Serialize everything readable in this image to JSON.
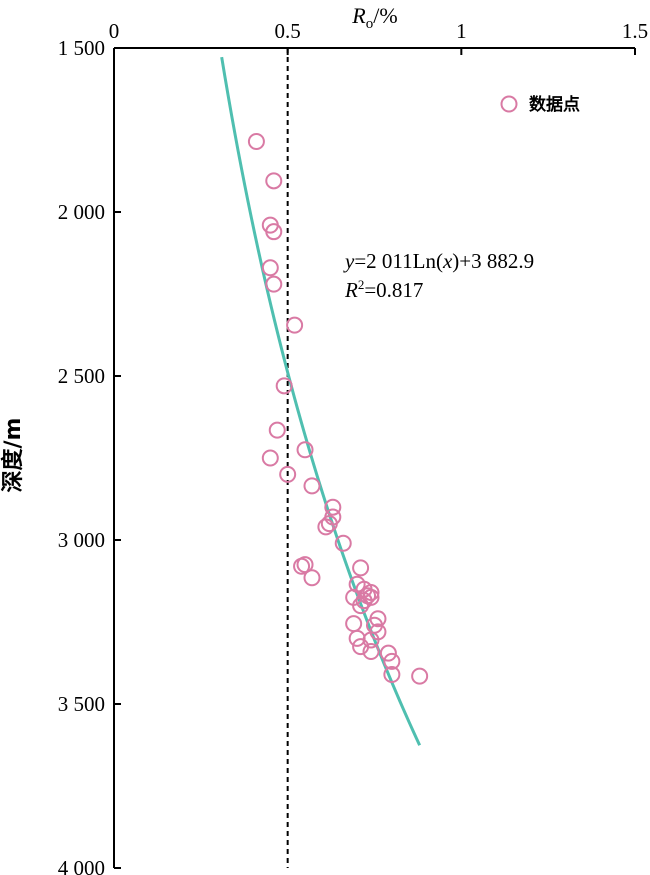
{
  "chart_data": {
    "type": "scatter",
    "xlabel_main": "R",
    "xlabel_sub": "o",
    "xlabel_unit": "/%",
    "ylabel": "深度/m",
    "xlim": [
      0,
      1.5
    ],
    "ylim": [
      1500,
      4000
    ],
    "y_inverted": true,
    "x_axis_position": "top",
    "x_ticks": [
      {
        "value": 0,
        "label": "0"
      },
      {
        "value": 0.5,
        "label": "0.5"
      },
      {
        "value": 1,
        "label": "1"
      },
      {
        "value": 1.5,
        "label": "1.5"
      }
    ],
    "y_ticks": [
      {
        "value": 1500,
        "label": "1 500"
      },
      {
        "value": 2000,
        "label": "2 000"
      },
      {
        "value": 2500,
        "label": "2 500"
      },
      {
        "value": 3000,
        "label": "3 000"
      },
      {
        "value": 3500,
        "label": "3 500"
      },
      {
        "value": 4000,
        "label": "4 000"
      }
    ],
    "grid": false,
    "legend_position": "top-right",
    "series": [
      {
        "name": "数据点",
        "color": "#d97aa4",
        "marker": "open-circle",
        "points": [
          [
            0.41,
            1785
          ],
          [
            0.46,
            1905
          ],
          [
            0.45,
            2040
          ],
          [
            0.46,
            2060
          ],
          [
            0.45,
            2170
          ],
          [
            0.46,
            2220
          ],
          [
            0.52,
            2345
          ],
          [
            0.49,
            2530
          ],
          [
            0.47,
            2665
          ],
          [
            0.55,
            2725
          ],
          [
            0.45,
            2750
          ],
          [
            0.5,
            2800
          ],
          [
            0.57,
            2835
          ],
          [
            0.63,
            2900
          ],
          [
            0.63,
            2930
          ],
          [
            0.62,
            2950
          ],
          [
            0.61,
            2960
          ],
          [
            0.66,
            3010
          ],
          [
            0.71,
            3085
          ],
          [
            0.55,
            3075
          ],
          [
            0.54,
            3080
          ],
          [
            0.57,
            3115
          ],
          [
            0.7,
            3135
          ],
          [
            0.69,
            3175
          ],
          [
            0.72,
            3150
          ],
          [
            0.74,
            3160
          ],
          [
            0.73,
            3170
          ],
          [
            0.74,
            3175
          ],
          [
            0.72,
            3185
          ],
          [
            0.71,
            3200
          ],
          [
            0.76,
            3240
          ],
          [
            0.69,
            3255
          ],
          [
            0.75,
            3260
          ],
          [
            0.76,
            3280
          ],
          [
            0.74,
            3305
          ],
          [
            0.7,
            3300
          ],
          [
            0.71,
            3325
          ],
          [
            0.74,
            3340
          ],
          [
            0.79,
            3345
          ],
          [
            0.8,
            3370
          ],
          [
            0.8,
            3410
          ],
          [
            0.88,
            3415
          ]
        ]
      }
    ],
    "fit": {
      "color": "#4fbfb0",
      "a": 2011,
      "b": 3882.9,
      "x_from": 0.31,
      "x_to": 0.88,
      "equation": "y=2 011Ln(x)+3 882.9",
      "r2_text": "R²=0.817"
    },
    "reference_line": {
      "x": 0.5,
      "style": "dashed",
      "color": "#000000"
    }
  }
}
